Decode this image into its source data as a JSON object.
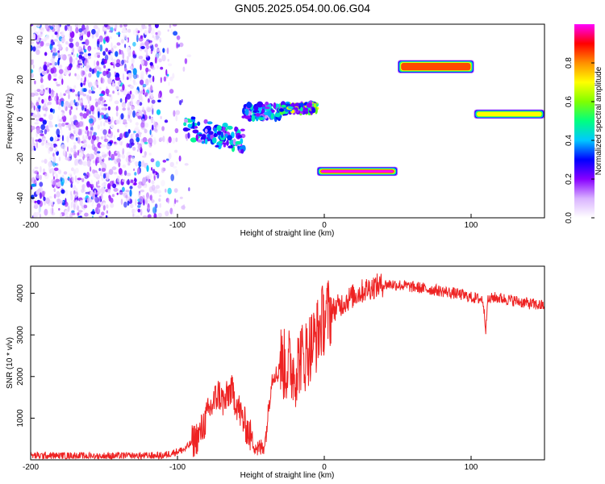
{
  "title": "GN05.2025.054.00.06.G04",
  "chart_data": [
    {
      "type": "heatmap",
      "xlabel": "Height of straight line (km)",
      "ylabel": "Frequency (Hz)",
      "xlim": [
        -200,
        150
      ],
      "ylim": [
        -50,
        48
      ],
      "xticks": [
        -200,
        -100,
        0,
        100
      ],
      "yticks": [
        -40,
        -20,
        0,
        20,
        40
      ],
      "colorbar": {
        "label": "Normalized spectral amplitude",
        "range": [
          0,
          1
        ],
        "ticks": [
          "0.0",
          "0.2",
          "0.4",
          "0.6",
          "0.8"
        ],
        "colormap": [
          "#ffffff",
          "#d9b3ff",
          "#8800ff",
          "#0000ff",
          "#00c8ff",
          "#00ff80",
          "#80ff00",
          "#ffff00",
          "#ff9000",
          "#ff0000",
          "#ff00ff"
        ]
      },
      "features": [
        {
          "x": [
            -200,
            -90
          ],
          "y": [
            -50,
            48
          ],
          "amplitude": 0.12,
          "kind": "noise"
        },
        {
          "x": [
            -95,
            -55
          ],
          "y": [
            -10,
            2
          ],
          "amplitude": 0.35,
          "kind": "cluster"
        },
        {
          "x": [
            -55,
            -30
          ],
          "y": [
            0,
            8
          ],
          "amplitude": 0.35,
          "kind": "cluster"
        },
        {
          "x": [
            -30,
            -5
          ],
          "y": [
            3,
            8
          ],
          "amplitude": 0.5,
          "kind": "cluster"
        },
        {
          "x": [
            -5,
            50
          ],
          "y": [
            -28,
            -25
          ],
          "amplitude": 0.9,
          "kind": "band"
        },
        {
          "x": [
            50,
            102
          ],
          "y": [
            24,
            29
          ],
          "amplitude": 0.75,
          "kind": "band"
        },
        {
          "x": [
            102,
            150
          ],
          "y": [
            1,
            4
          ],
          "amplitude": 0.6,
          "kind": "band"
        }
      ]
    },
    {
      "type": "line",
      "xlabel": "Height of straight line (km)",
      "ylabel": "SNR (10 * v/v)",
      "xlim": [
        -200,
        150
      ],
      "ylim": [
        0,
        4650
      ],
      "xticks": [
        -200,
        -100,
        0,
        100
      ],
      "yticks": [
        1000,
        2000,
        3000,
        4000
      ],
      "color": "#ee2222",
      "series": [
        {
          "x": [
            -200,
            -150,
            -110,
            -95,
            -85,
            -78,
            -72,
            -68,
            -64,
            -60,
            -56,
            -52,
            -48,
            -45,
            -42,
            -40,
            -38,
            -36,
            -34,
            -32,
            -30,
            -28,
            -26,
            -24,
            -22,
            -20,
            -18,
            -16,
            -14,
            -12,
            -10,
            -8,
            -6,
            -4,
            -2,
            0,
            2,
            4,
            6,
            8,
            10,
            14,
            18,
            22,
            26,
            30,
            35,
            40,
            45,
            50,
            55,
            60,
            65,
            70,
            75,
            80,
            85,
            90,
            95,
            100,
            105,
            108,
            110,
            111,
            113,
            115,
            120,
            125,
            130,
            135,
            140,
            145,
            150
          ],
          "y": [
            100,
            90,
            100,
            250,
            600,
            1200,
            1600,
            1350,
            1700,
            1400,
            1000,
            700,
            400,
            250,
            300,
            500,
            1200,
            1900,
            2100,
            2000,
            2400,
            2300,
            2200,
            2300,
            2200,
            2100,
            2300,
            2500,
            2400,
            2600,
            2700,
            2800,
            2900,
            3100,
            3300,
            3400,
            3500,
            3550,
            3600,
            3650,
            3700,
            3800,
            3900,
            3980,
            4050,
            4120,
            4170,
            4200,
            4220,
            4200,
            4180,
            4150,
            4130,
            4100,
            4080,
            4050,
            4020,
            3990,
            3950,
            3900,
            3870,
            3850,
            3150,
            3800,
            3850,
            3900,
            3880,
            3850,
            3820,
            3780,
            3750,
            3720,
            3700
          ]
        }
      ]
    }
  ]
}
